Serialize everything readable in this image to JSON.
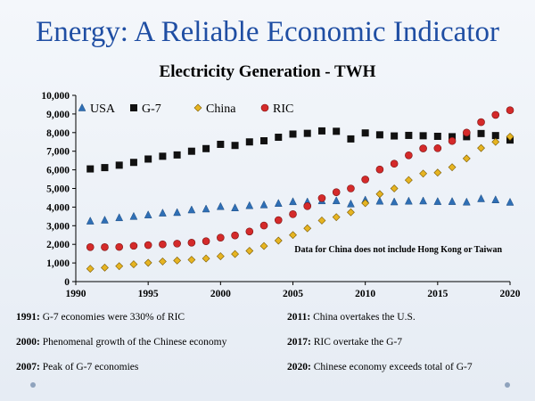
{
  "slide": {
    "title": "Energy: A Reliable Economic Indicator"
  },
  "chart_data": {
    "type": "scatter",
    "title": "Electricity Generation - TWH",
    "annotation": "Data for China does not include Hong Kong or Taiwan",
    "legend_position": "top-left",
    "grid": false,
    "xlim": [
      1990,
      2020
    ],
    "ylim": [
      0,
      10000
    ],
    "x_ticks": [
      "1990",
      "1995",
      "2000",
      "2005",
      "2010",
      "2015",
      "2020"
    ],
    "y_ticks": [
      "0",
      "1,000",
      "2,000",
      "3,000",
      "4,000",
      "5,000",
      "6,000",
      "7,000",
      "8,000",
      "9,000",
      "10,000"
    ],
    "x": [
      1991,
      1992,
      1993,
      1994,
      1995,
      1996,
      1997,
      1998,
      1999,
      2000,
      2001,
      2002,
      2003,
      2004,
      2005,
      2006,
      2007,
      2008,
      2009,
      2010,
      2011,
      2012,
      2013,
      2014,
      2015,
      2016,
      2017,
      2018,
      2019,
      2020
    ],
    "series": [
      {
        "name": "USA",
        "marker": "triangle",
        "color": "#2f6fb5",
        "values": [
          3250,
          3300,
          3430,
          3500,
          3580,
          3680,
          3710,
          3850,
          3900,
          4030,
          3960,
          4080,
          4120,
          4200,
          4290,
          4280,
          4340,
          4340,
          4170,
          4380,
          4320,
          4280,
          4320,
          4330,
          4300,
          4300,
          4270,
          4450,
          4390,
          4260
        ]
      },
      {
        "name": "G-7",
        "marker": "square",
        "color": "#111111",
        "values": [
          6050,
          6120,
          6250,
          6400,
          6580,
          6730,
          6800,
          7000,
          7140,
          7370,
          7310,
          7500,
          7560,
          7750,
          7920,
          7960,
          8090,
          8070,
          7660,
          7980,
          7880,
          7820,
          7850,
          7830,
          7800,
          7780,
          7780,
          7950,
          7840,
          7600
        ]
      },
      {
        "name": "China",
        "marker": "diamond",
        "color": "#e6b422",
        "values": [
          690,
          750,
          830,
          930,
          1010,
          1080,
          1130,
          1170,
          1240,
          1360,
          1480,
          1650,
          1910,
          2200,
          2500,
          2860,
          3280,
          3460,
          3720,
          4210,
          4700,
          5000,
          5450,
          5800,
          5850,
          6140,
          6610,
          7170,
          7500,
          7780
        ]
      },
      {
        "name": "RIC",
        "marker": "circle",
        "color": "#d42a2a",
        "values": [
          1850,
          1850,
          1860,
          1920,
          1960,
          2000,
          2040,
          2090,
          2170,
          2360,
          2480,
          2690,
          3010,
          3300,
          3620,
          4050,
          4480,
          4800,
          5000,
          5480,
          6020,
          6330,
          6780,
          7150,
          7160,
          7550,
          8000,
          8560,
          8950,
          9200
        ]
      }
    ]
  },
  "notes": [
    {
      "year": "1991:",
      "text": " G-7 economies were 330% of RIC"
    },
    {
      "year": "2011:",
      "text": " China overtakes the U.S."
    },
    {
      "year": "2000:",
      "text": " Phenomenal growth of the Chinese economy"
    },
    {
      "year": "2017:",
      "text": " RIC overtake the G-7"
    },
    {
      "year": "2007:",
      "text": " Peak of G-7 economies"
    },
    {
      "year": "2020:",
      "text": " Chinese economy exceeds total of G-7"
    }
  ]
}
